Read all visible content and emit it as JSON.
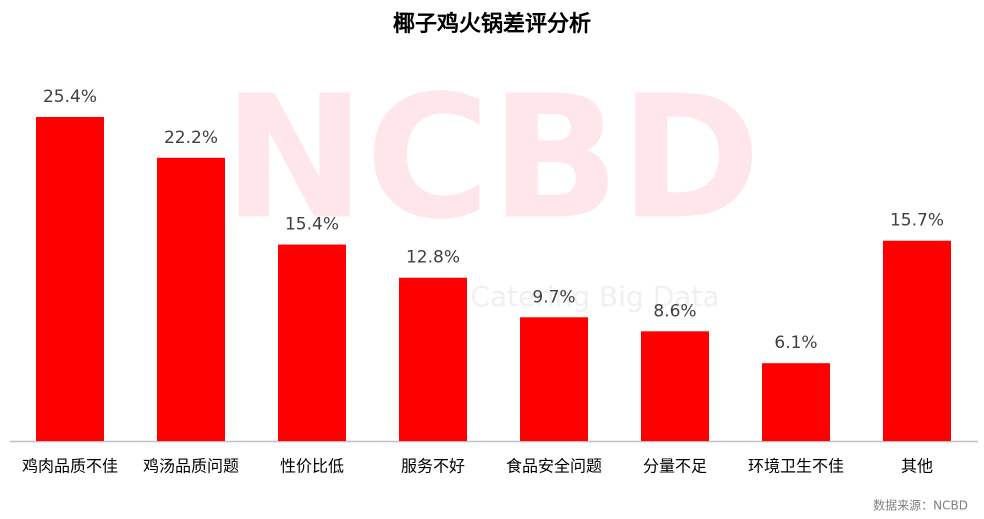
{
  "chart_data": {
    "type": "bar",
    "title": "椰子鸡火锅差评分析",
    "categories": [
      "鸡肉品质不佳",
      "鸡汤品质问题",
      "性价比低",
      "服务不好",
      "食品安全问题",
      "分量不足",
      "环境卫生不佳",
      "其他"
    ],
    "values": [
      25.4,
      22.2,
      15.4,
      12.8,
      9.7,
      8.6,
      6.1,
      15.7
    ],
    "value_labels": [
      "25.4%",
      "22.2%",
      "15.4%",
      "12.8%",
      "9.7%",
      "8.6%",
      "6.1%",
      "15.7%"
    ],
    "color": "#ff0000",
    "watermark": "NCBD",
    "watermark_sub": "Catering Big Data",
    "source": "数据来源：NCBD"
  }
}
